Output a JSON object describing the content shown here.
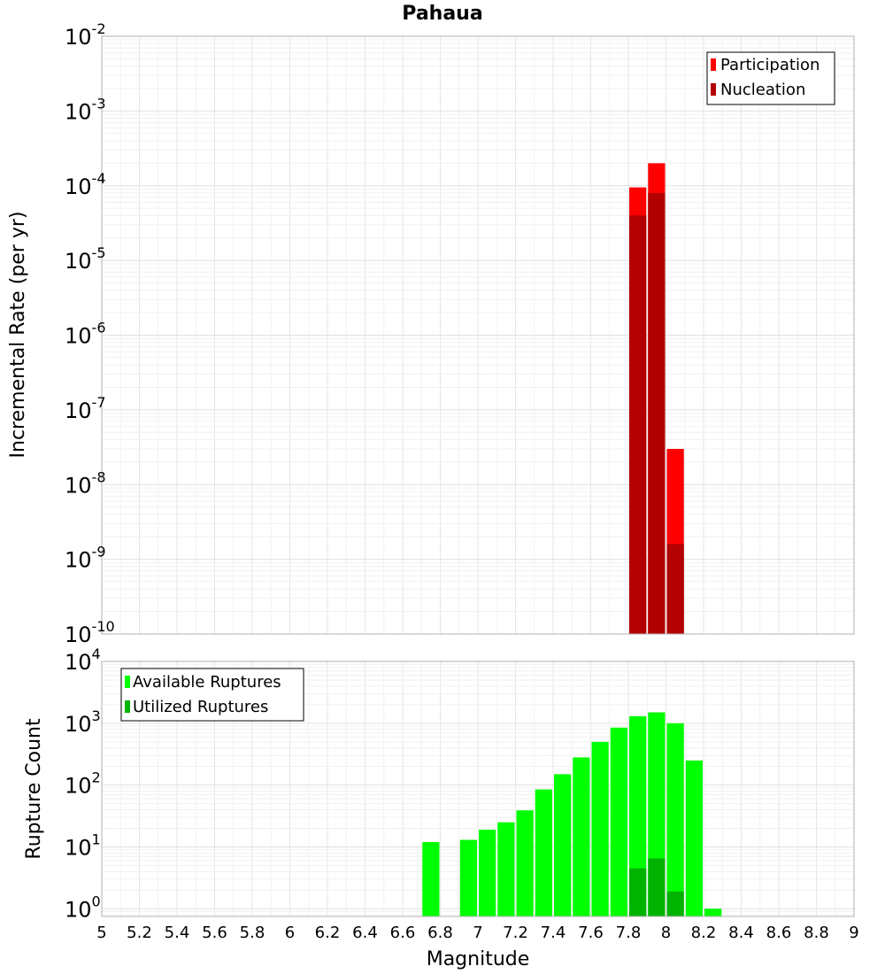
{
  "chart_data": [
    {
      "type": "bar",
      "title": "Pahaua",
      "xlabel": "Magnitude",
      "ylabel": "Incremental Rate (per yr)",
      "yscale": "log",
      "xlim": [
        5,
        9
      ],
      "ylim": [
        1e-10,
        0.01
      ],
      "grid": true,
      "legend_position": "top-right",
      "bin_width": 0.1,
      "x": [
        7.85,
        7.95,
        8.05
      ],
      "series": [
        {
          "name": "Participation",
          "color": "#ff0000",
          "values": [
            9.5e-05,
            0.0002,
            3e-08
          ]
        },
        {
          "name": "Nucleation",
          "color": "#b30000",
          "values": [
            4e-05,
            8e-05,
            1.6e-09
          ]
        }
      ],
      "x_ticks": [
        "5",
        "5.2",
        "5.4",
        "5.6",
        "5.8",
        "6",
        "6.2",
        "6.4",
        "6.6",
        "6.8",
        "7",
        "7.2",
        "7.4",
        "7.6",
        "7.8",
        "8",
        "8.2",
        "8.4",
        "8.6",
        "8.8",
        "9"
      ],
      "y_ticks": [
        {
          "base": "10",
          "exp": "-2"
        },
        {
          "base": "10",
          "exp": "-3"
        },
        {
          "base": "10",
          "exp": "-4"
        },
        {
          "base": "10",
          "exp": "-5"
        },
        {
          "base": "10",
          "exp": "-6"
        },
        {
          "base": "10",
          "exp": "-7"
        },
        {
          "base": "10",
          "exp": "-8"
        },
        {
          "base": "10",
          "exp": "-9"
        },
        {
          "base": "10",
          "exp": "-10"
        }
      ]
    },
    {
      "type": "bar",
      "title": "",
      "xlabel": "Magnitude",
      "ylabel": "Rupture Count",
      "yscale": "log",
      "xlim": [
        5,
        9
      ],
      "ylim": [
        0.75,
        10000
      ],
      "grid": true,
      "legend_position": "top-left",
      "bin_width": 0.1,
      "x": [
        6.75,
        6.95,
        7.05,
        7.15,
        7.25,
        7.35,
        7.45,
        7.55,
        7.65,
        7.75,
        7.85,
        7.95,
        8.05,
        8.15,
        8.25
      ],
      "series": [
        {
          "name": "Available Ruptures",
          "color": "#00ff00",
          "values": [
            12,
            13,
            19,
            25,
            39,
            85,
            150,
            280,
            500,
            850,
            1300,
            1500,
            1000,
            250,
            1
          ]
        },
        {
          "name": "Utilized Ruptures",
          "color": "#00b300",
          "values": [
            0,
            0,
            0,
            0,
            0,
            0,
            0,
            0,
            0,
            0,
            4.5,
            6.5,
            1.9,
            0,
            0
          ]
        }
      ],
      "x_ticks": [
        "5",
        "5.2",
        "5.4",
        "5.6",
        "5.8",
        "6",
        "6.2",
        "6.4",
        "6.6",
        "6.8",
        "7",
        "7.2",
        "7.4",
        "7.6",
        "7.8",
        "8",
        "8.2",
        "8.4",
        "8.6",
        "8.8",
        "9"
      ],
      "y_ticks": [
        {
          "base": "10",
          "exp": "4"
        },
        {
          "base": "10",
          "exp": "3"
        },
        {
          "base": "10",
          "exp": "2"
        },
        {
          "base": "10",
          "exp": "1"
        },
        {
          "base": "10",
          "exp": "0"
        }
      ]
    }
  ]
}
